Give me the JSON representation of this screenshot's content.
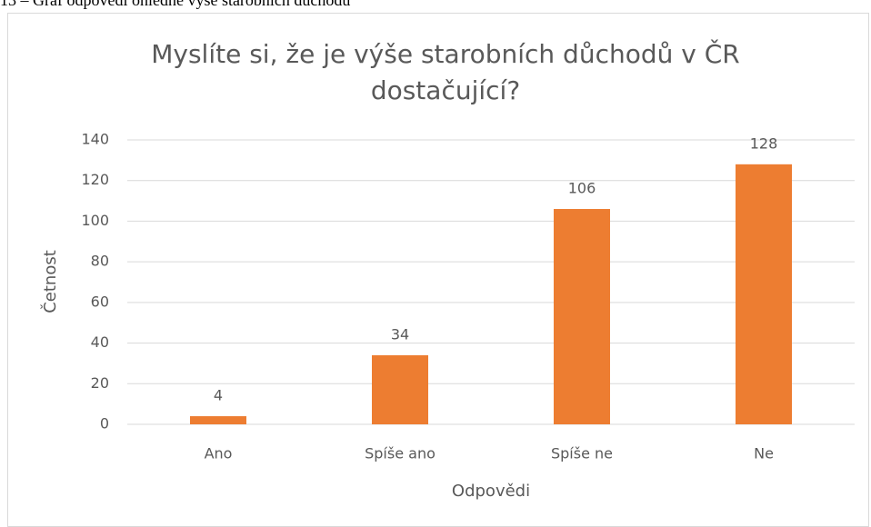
{
  "caption": "13 – Graf odpovědí ohledně výše starobních důchodů",
  "chart_data": {
    "type": "bar",
    "title": "Myslíte si, že je výše starobních důchodů v ČR dostačující?",
    "x_label": "Odpovědi",
    "y_label": "Četnost",
    "categories": [
      "Ano",
      "Spíše ano",
      "Spíše ne",
      "Ne"
    ],
    "values": [
      4,
      34,
      106,
      128
    ],
    "color": "#ed7d31",
    "ylim": [
      0,
      140
    ],
    "yticks": [
      0,
      20,
      40,
      60,
      80,
      100,
      120,
      140
    ],
    "grid": true,
    "data_labels": true
  }
}
